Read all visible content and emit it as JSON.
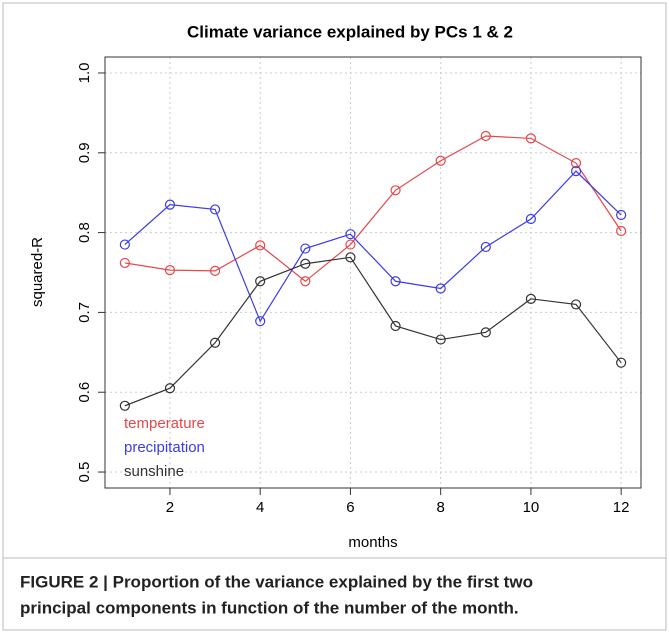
{
  "chart_data": {
    "type": "line",
    "title": "Climate variance explained by PCs 1 & 2",
    "x_label": "months",
    "y_label": "squared-R",
    "x": [
      1,
      2,
      3,
      4,
      5,
      6,
      7,
      8,
      9,
      10,
      11,
      12
    ],
    "series": [
      {
        "name": "temperature",
        "color": "#e8464a",
        "values": [
          0.762,
          0.753,
          0.752,
          0.784,
          0.739,
          0.785,
          0.853,
          0.89,
          0.921,
          0.918,
          0.887,
          0.802
        ]
      },
      {
        "name": "precipitation",
        "color": "#3b3bea",
        "values": [
          0.785,
          0.835,
          0.829,
          0.689,
          0.78,
          0.798,
          0.739,
          0.73,
          0.782,
          0.817,
          0.877,
          0.822
        ]
      },
      {
        "name": "sunshine",
        "color": "#333333",
        "values": [
          0.583,
          0.605,
          0.662,
          0.739,
          0.761,
          0.769,
          0.683,
          0.666,
          0.675,
          0.717,
          0.71,
          0.637
        ]
      }
    ],
    "xlim": [
      0.56,
      12.44
    ],
    "xticks": [
      2,
      4,
      6,
      8,
      10,
      12
    ],
    "ylim": [
      0.48,
      1.02
    ],
    "yticks": [
      0.5,
      0.6,
      0.7,
      0.8,
      0.9,
      {
        "value": 1.0,
        "label": "1.0"
      }
    ],
    "grid": true,
    "legend": "bottom-left"
  },
  "caption": {
    "lines": [
      "FIGURE 2 | Proportion of the variance explained by the first two",
      "principal components in function of the number of the month."
    ]
  }
}
